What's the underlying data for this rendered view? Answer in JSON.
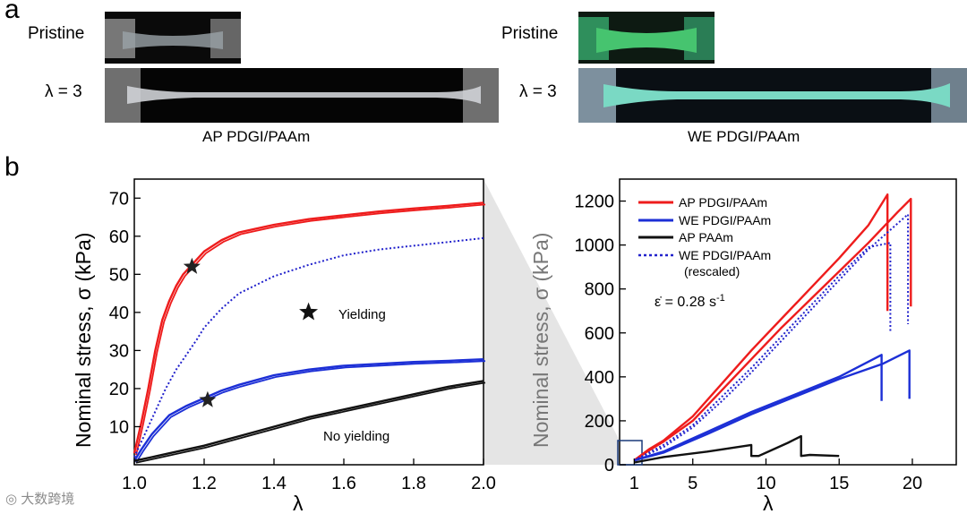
{
  "panel_a": {
    "letter": "a",
    "left": {
      "pristine_label": "Pristine",
      "stretched_label": "λ = 3",
      "caption": "AP PDGI/PAAm"
    },
    "right": {
      "pristine_label": "Pristine",
      "stretched_label": "λ = 3",
      "caption": "WE PDGI/PAAm"
    }
  },
  "panel_b": {
    "letter": "b"
  },
  "watermark": "大数跨境",
  "chart_data": [
    {
      "type": "line",
      "title": "",
      "xlabel": "λ",
      "ylabel": "Nominal stress, σ (kPa)",
      "xlim": [
        1.0,
        2.0
      ],
      "ylim": [
        0,
        75
      ],
      "xticks": [
        "1.0",
        "1.2",
        "1.4",
        "1.6",
        "1.8",
        "2.0"
      ],
      "yticks": [
        "10",
        "20",
        "30",
        "40",
        "50",
        "60",
        "70"
      ],
      "annotations": [
        {
          "text": "Yielding",
          "marker": "star",
          "x": 1.54,
          "y": 41
        },
        {
          "text": "No yielding",
          "x": 1.62,
          "y": 5
        }
      ],
      "yield_points": [
        {
          "x": 1.165,
          "y": 52
        },
        {
          "x": 1.21,
          "y": 17
        }
      ],
      "series": [
        {
          "name": "AP PDGI/PAAm",
          "color": "#ee1c1c",
          "style": "solid",
          "x": [
            1.0,
            1.02,
            1.04,
            1.06,
            1.08,
            1.1,
            1.12,
            1.14,
            1.17,
            1.2,
            1.25,
            1.3,
            1.4,
            1.5,
            1.6,
            1.7,
            1.8,
            1.9,
            2.0
          ],
          "y": [
            3,
            11,
            20,
            30,
            38,
            43,
            47,
            50,
            53,
            56,
            59,
            61,
            63,
            64.5,
            65.5,
            66.5,
            67.3,
            68,
            68.8
          ]
        },
        {
          "name": "WE PDGI/PAAm (rescaled)",
          "color": "#2222cc",
          "style": "dotted",
          "x": [
            1.0,
            1.03,
            1.06,
            1.09,
            1.12,
            1.15,
            1.18,
            1.2,
            1.25,
            1.3,
            1.4,
            1.5,
            1.6,
            1.7,
            1.8,
            1.9,
            2.0
          ],
          "y": [
            2,
            8,
            14,
            20,
            25,
            29,
            33,
            36,
            41,
            45,
            49.5,
            52.5,
            55,
            56.5,
            57.5,
            58.5,
            59.5
          ]
        },
        {
          "name": "WE PDGI/PAAm",
          "color": "#1c2fd6",
          "style": "solid",
          "x": [
            1.0,
            1.02,
            1.05,
            1.08,
            1.1,
            1.15,
            1.2,
            1.25,
            1.3,
            1.4,
            1.5,
            1.6,
            1.7,
            1.8,
            1.9,
            2.0
          ],
          "y": [
            1,
            4,
            8,
            11,
            13,
            15.5,
            17.5,
            19.5,
            21,
            23.5,
            25,
            26,
            26.5,
            27,
            27.3,
            27.7
          ]
        },
        {
          "name": "AP PAAm",
          "color": "#111111",
          "style": "solid",
          "x": [
            1.0,
            1.05,
            1.1,
            1.2,
            1.3,
            1.4,
            1.5,
            1.6,
            1.7,
            1.8,
            1.9,
            2.0
          ],
          "y": [
            1,
            2,
            3,
            5,
            7.5,
            10,
            12.5,
            14.5,
            16.5,
            18.5,
            20.5,
            22
          ]
        }
      ]
    },
    {
      "type": "line",
      "title": "",
      "xlabel": "λ",
      "ylabel": "Nominal stress, σ (kPa)",
      "xlim": [
        0,
        23
      ],
      "ylim": [
        0,
        1300
      ],
      "xticks": [
        "1",
        "5",
        "10",
        "15",
        "20"
      ],
      "yticks": [
        "0",
        "200",
        "400",
        "600",
        "800",
        "1000",
        "1200"
      ],
      "legend_position": "top-left",
      "rate_label": "ε̇ = 0.28 s",
      "rate_exponent": "-1",
      "zoom_box": {
        "x": [
          1.0,
          2.0
        ],
        "y": [
          0,
          75
        ]
      },
      "series": [
        {
          "name": "AP PDGI/PAAm",
          "color": "#ee1c1c",
          "style": "solid",
          "x": [
            1,
            2,
            3,
            5,
            7,
            9,
            11,
            13,
            15,
            17,
            18.3,
            18.3
          ],
          "y": [
            20,
            70,
            110,
            220,
            370,
            520,
            660,
            800,
            940,
            1090,
            1230,
            700
          ]
        },
        {
          "name": "AP PDGI/PAAm",
          "color": "#ee1c1c",
          "style": "solid",
          "x": [
            1,
            2,
            3,
            5,
            7,
            9,
            11,
            13,
            15,
            17,
            19,
            19.9,
            19.9
          ],
          "y": [
            20,
            65,
            105,
            200,
            340,
            480,
            620,
            750,
            880,
            1010,
            1150,
            1210,
            720
          ]
        },
        {
          "name": "WE PDGI/PAAm",
          "color": "#1c2fd6",
          "style": "solid",
          "x": [
            1,
            3,
            6,
            9,
            12,
            15,
            17.9,
            17.9
          ],
          "y": [
            20,
            60,
            150,
            240,
            320,
            400,
            500,
            290
          ]
        },
        {
          "name": "WE PDGI/PAAm",
          "color": "#1c2fd6",
          "style": "solid",
          "x": [
            1,
            3,
            6,
            9,
            12,
            15,
            18,
            19.8,
            19.8
          ],
          "y": [
            20,
            55,
            140,
            230,
            310,
            390,
            460,
            520,
            300
          ]
        },
        {
          "name": "AP PAAm",
          "color": "#111111",
          "style": "solid",
          "x": [
            1,
            3,
            6,
            9,
            9,
            9.5,
            11.5,
            12.4,
            12.4,
            13,
            15
          ],
          "y": [
            10,
            35,
            60,
            90,
            40,
            40,
            100,
            130,
            40,
            45,
            40
          ]
        },
        {
          "name": "WE PDGI/PAAm (rescaled)",
          "color": "#2222cc",
          "style": "dotted",
          "x": [
            1,
            3,
            5,
            7,
            9,
            11,
            13,
            15,
            17,
            18.5,
            18.5
          ],
          "y": [
            20,
            90,
            180,
            310,
            440,
            580,
            720,
            860,
            990,
            1010,
            600
          ]
        },
        {
          "name": "WE PDGI/PAAm (rescaled)",
          "color": "#2222cc",
          "style": "dotted",
          "x": [
            1,
            3,
            5,
            7,
            9,
            11,
            13,
            15,
            17,
            19.7,
            19.7
          ],
          "y": [
            20,
            80,
            170,
            290,
            420,
            560,
            700,
            840,
            980,
            1140,
            640
          ]
        }
      ]
    }
  ]
}
